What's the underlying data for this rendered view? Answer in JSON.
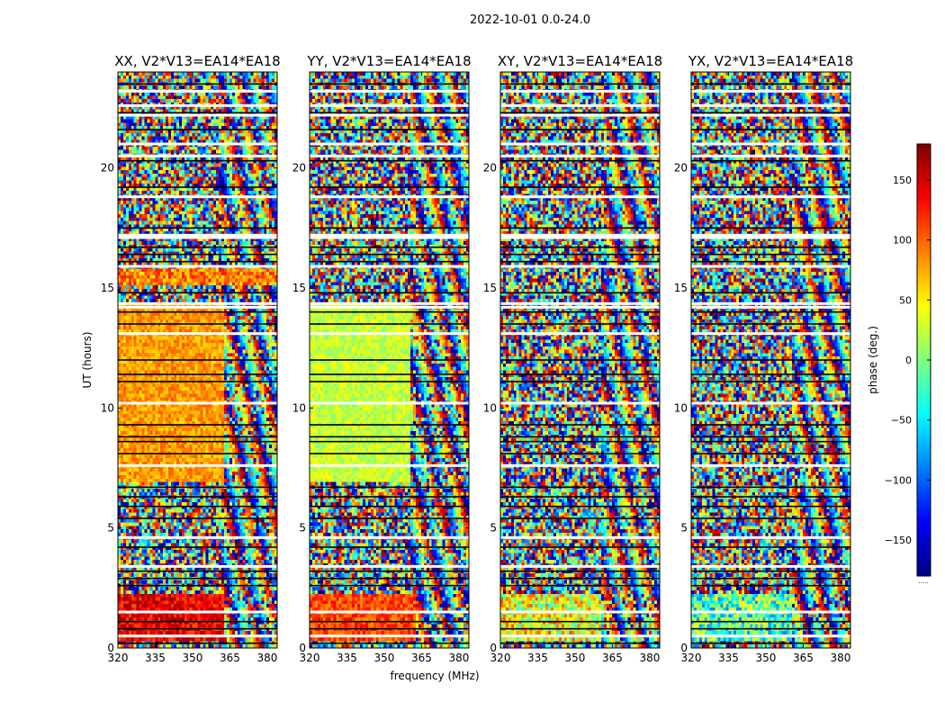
{
  "figure": {
    "suptitle": "2022-10-01 0.0-24.0",
    "xlabel": "frequency (MHz)",
    "ylabel": "UT (hours)"
  },
  "colorbar": {
    "label": "phase (deg.)",
    "range": [
      -180,
      180
    ],
    "ticks": [
      150,
      100,
      50,
      0,
      -50,
      -100,
      -150
    ],
    "tick_labels": [
      "150",
      "100",
      "50",
      "0",
      "−50",
      "−100",
      "−150"
    ],
    "colormap": [
      "#00007f",
      "#0000ff",
      "#007fff",
      "#00ffff",
      "#7fff7f",
      "#ffff00",
      "#ff7f00",
      "#ff0000",
      "#7f0000"
    ],
    "bottom_note": "....."
  },
  "chart_data": [
    {
      "type": "heatmap",
      "title": "XX, V2*V13=EA14*EA18",
      "polarization": "XX",
      "xlim": [
        320,
        384
      ],
      "ylim": [
        0,
        24
      ],
      "xticks": [
        320,
        335,
        350,
        365,
        380
      ],
      "yticks": [
        0,
        5,
        10,
        15,
        20
      ],
      "value": "phase (deg.)",
      "blocks": [
        {
          "t": [
            0.3,
            2.2
          ],
          "f": [
            320,
            363
          ],
          "phase": 140,
          "jitter": 35,
          "note": "red band"
        },
        {
          "t": [
            6.9,
            14.4
          ],
          "f": [
            320,
            363
          ],
          "phase": 80,
          "jitter": 25,
          "note": "orange band"
        },
        {
          "t": [
            15.1,
            15.8
          ],
          "f": [
            320,
            384
          ],
          "phase": 90,
          "jitter": 40
        }
      ]
    },
    {
      "type": "heatmap",
      "title": "YY, V2*V13=EA14*EA18",
      "polarization": "YY",
      "xlim": [
        320,
        384
      ],
      "ylim": [
        0,
        24
      ],
      "xticks": [
        320,
        335,
        350,
        365,
        380
      ],
      "yticks": [
        0,
        5,
        10,
        15,
        20
      ],
      "value": "phase (deg.)",
      "blocks": [
        {
          "t": [
            0.3,
            2.2
          ],
          "f": [
            320,
            363
          ],
          "phase": 110,
          "jitter": 30
        },
        {
          "t": [
            6.9,
            14.4
          ],
          "f": [
            320,
            360
          ],
          "phase": 25,
          "jitter": 25,
          "note": "green-yellow band"
        }
      ]
    },
    {
      "type": "heatmap",
      "title": "XY, V2*V13=EA14*EA18",
      "polarization": "XY",
      "xlim": [
        320,
        384
      ],
      "ylim": [
        0,
        24
      ],
      "xticks": [
        320,
        335,
        350,
        365,
        380
      ],
      "yticks": [
        0,
        5,
        10,
        15,
        20
      ],
      "value": "phase (deg.)",
      "blocks": [
        {
          "t": [
            0.3,
            2.2
          ],
          "f": [
            320,
            360
          ],
          "phase": 40,
          "jitter": 70
        }
      ]
    },
    {
      "type": "heatmap",
      "title": "YX, V2*V13=EA14*EA18",
      "polarization": "YX",
      "xlim": [
        320,
        384
      ],
      "ylim": [
        0,
        24
      ],
      "xticks": [
        320,
        335,
        350,
        365,
        380
      ],
      "yticks": [
        0,
        5,
        10,
        15,
        20
      ],
      "value": "phase (deg.)",
      "blocks": [
        {
          "t": [
            0.3,
            2.2
          ],
          "f": [
            320,
            360
          ],
          "phase": -20,
          "jitter": 70
        }
      ]
    }
  ],
  "flags": {
    "white_gaps_hours": [
      0.5,
      1.5,
      3.4,
      4.6,
      7.6,
      10.2,
      13.1,
      14.2,
      14.35,
      15.9,
      17.1,
      17.2,
      18.8,
      20.5,
      21.0,
      22.2,
      22.6,
      23.2
    ],
    "black_lines_hours": [
      0.2,
      0.8,
      1.1,
      2.6,
      2.9,
      3.2,
      4.2,
      5.4,
      5.9,
      6.3,
      6.7,
      8.1,
      8.6,
      8.8,
      9.3,
      11.1,
      11.4,
      12.0,
      13.5,
      14.0,
      14.8,
      16.1,
      16.4,
      16.7,
      17.5,
      19.2,
      20.3,
      21.6,
      22.3,
      23.5
    ]
  },
  "labels": {
    "xlabel": "frequency (MHz)"
  }
}
